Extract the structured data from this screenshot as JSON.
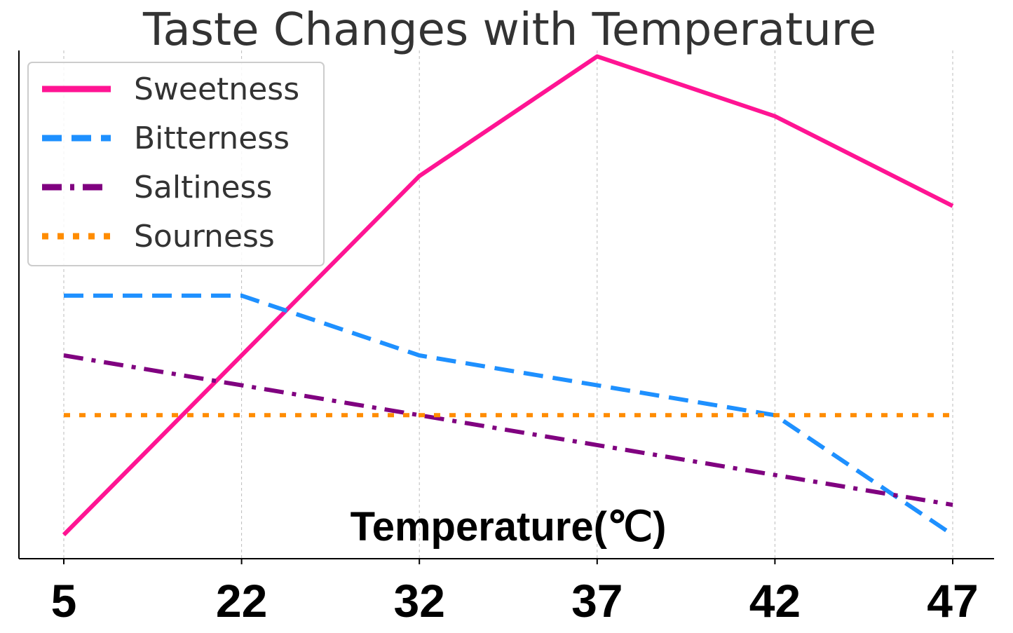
{
  "chart_data": {
    "type": "line",
    "title": "Taste Changes with Temperature",
    "xlabel": "Temperature(℃)",
    "ylabel": "",
    "x": [
      5,
      22,
      32,
      37,
      42,
      47
    ],
    "ylim": [
      0,
      8.5
    ],
    "grid": {
      "x": true,
      "y": false
    },
    "legend_position": "top-left",
    "series": [
      {
        "name": "Sweetness",
        "values": [
          0.4,
          3.4,
          6.4,
          8.4,
          7.4,
          5.9
        ],
        "color": "#ff1493",
        "style": "solid"
      },
      {
        "name": "Bitterness",
        "values": [
          4.4,
          4.4,
          3.4,
          2.9,
          2.4,
          0.4
        ],
        "color": "#1e90ff",
        "style": "dashed"
      },
      {
        "name": "Saltiness",
        "values": [
          3.4,
          2.9,
          2.4,
          1.9,
          1.4,
          0.9
        ],
        "color": "#800080",
        "style": "dashdot"
      },
      {
        "name": "Sourness",
        "values": [
          2.4,
          2.4,
          2.4,
          2.4,
          2.4,
          2.4
        ],
        "color": "#ff8c00",
        "style": "dotted"
      }
    ]
  }
}
